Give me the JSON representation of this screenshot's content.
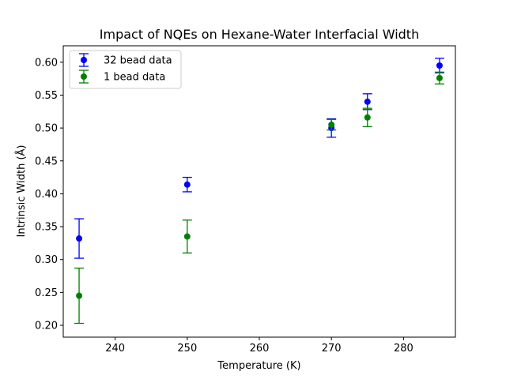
{
  "chart_data": {
    "type": "scatter",
    "title": "Impact of NQEs on Hexane-Water Interfacial Width",
    "xlabel": "Temperature (K)",
    "ylabel": "Intrinsic Width (Å)",
    "xlim": [
      232.8,
      287.2
    ],
    "ylim": [
      0.182,
      0.625
    ],
    "xticks": [
      240,
      250,
      260,
      270,
      280
    ],
    "yticks": [
      0.2,
      0.25,
      0.3,
      0.35,
      0.4,
      0.45,
      0.5,
      0.55,
      0.6
    ],
    "grid": false,
    "legend_placement": "upper-left",
    "series": [
      {
        "name": "32 bead data",
        "color": "#0000ff",
        "x": [
          235,
          250,
          270,
          275,
          285
        ],
        "y": [
          0.332,
          0.414,
          0.5,
          0.54,
          0.595
        ],
        "yerr": [
          0.03,
          0.011,
          0.014,
          0.012,
          0.011
        ]
      },
      {
        "name": "1 bead data",
        "color": "#008000",
        "x": [
          235,
          250,
          270,
          275,
          285
        ],
        "y": [
          0.245,
          0.335,
          0.505,
          0.516,
          0.576
        ],
        "yerr": [
          0.042,
          0.025,
          0.008,
          0.014,
          0.009
        ]
      }
    ]
  }
}
